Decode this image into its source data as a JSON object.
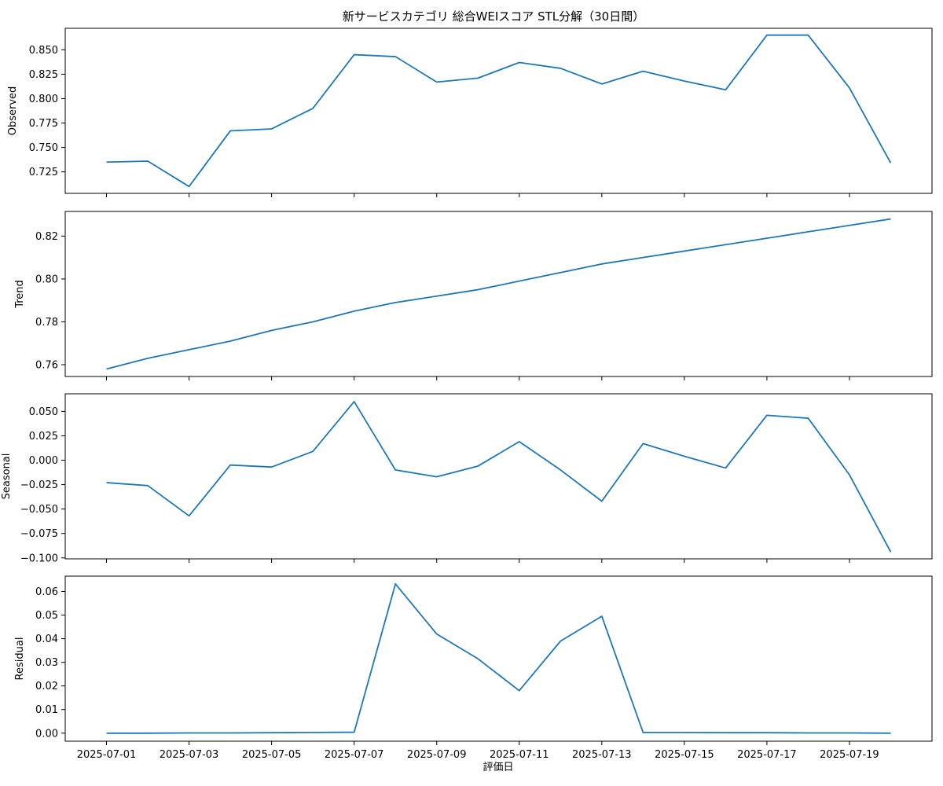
{
  "title": "新サービスカテゴリ 総合WEIスコア STL分解（30日間）",
  "xlabel": "評価日",
  "colors": {
    "line": "#1f77b4",
    "axes": "#000000",
    "background": "#ffffff"
  },
  "chart_data": [
    {
      "type": "line",
      "ylabel": "Observed",
      "xlim": [
        "2025-06-30",
        "2025-07-21"
      ],
      "ylim": [
        0.703,
        0.872
      ],
      "yticks": [
        "0.725",
        "0.750",
        "0.775",
        "0.800",
        "0.825",
        "0.850"
      ],
      "x": [
        "2025-07-01",
        "2025-07-02",
        "2025-07-03",
        "2025-07-04",
        "2025-07-05",
        "2025-07-06",
        "2025-07-07",
        "2025-07-08",
        "2025-07-09",
        "2025-07-10",
        "2025-07-11",
        "2025-07-12",
        "2025-07-13",
        "2025-07-14",
        "2025-07-15",
        "2025-07-16",
        "2025-07-17",
        "2025-07-18",
        "2025-07-19",
        "2025-07-20"
      ],
      "values": [
        0.735,
        0.736,
        0.71,
        0.767,
        0.769,
        0.79,
        0.845,
        0.843,
        0.817,
        0.821,
        0.837,
        0.831,
        0.815,
        0.828,
        0.818,
        0.809,
        0.865,
        0.865,
        0.811,
        0.734
      ]
    },
    {
      "type": "line",
      "ylabel": "Trend",
      "xlim": [
        "2025-06-30",
        "2025-07-21"
      ],
      "ylim": [
        0.7545,
        0.8315
      ],
      "yticks": [
        "0.76",
        "0.78",
        "0.80",
        "0.82"
      ],
      "x": [
        "2025-07-01",
        "2025-07-02",
        "2025-07-03",
        "2025-07-04",
        "2025-07-05",
        "2025-07-06",
        "2025-07-07",
        "2025-07-08",
        "2025-07-09",
        "2025-07-10",
        "2025-07-11",
        "2025-07-12",
        "2025-07-13",
        "2025-07-14",
        "2025-07-15",
        "2025-07-16",
        "2025-07-17",
        "2025-07-18",
        "2025-07-19",
        "2025-07-20"
      ],
      "values": [
        0.758,
        0.763,
        0.767,
        0.771,
        0.776,
        0.78,
        0.785,
        0.789,
        0.792,
        0.795,
        0.799,
        0.803,
        0.807,
        0.81,
        0.813,
        0.816,
        0.819,
        0.822,
        0.825,
        0.828
      ]
    },
    {
      "type": "line",
      "ylabel": "Seasonal",
      "xlim": [
        "2025-06-30",
        "2025-07-21"
      ],
      "ylim": [
        -0.101,
        0.068
      ],
      "yticks": [
        "−0.100",
        "−0.075",
        "−0.050",
        "−0.025",
        "0.000",
        "0.025",
        "0.050"
      ],
      "x": [
        "2025-07-01",
        "2025-07-02",
        "2025-07-03",
        "2025-07-04",
        "2025-07-05",
        "2025-07-06",
        "2025-07-07",
        "2025-07-08",
        "2025-07-09",
        "2025-07-10",
        "2025-07-11",
        "2025-07-12",
        "2025-07-13",
        "2025-07-14",
        "2025-07-15",
        "2025-07-16",
        "2025-07-17",
        "2025-07-18",
        "2025-07-19",
        "2025-07-20"
      ],
      "values": [
        -0.023,
        -0.026,
        -0.057,
        -0.005,
        -0.007,
        0.009,
        0.06,
        -0.01,
        -0.017,
        -0.006,
        0.019,
        -0.01,
        -0.042,
        0.017,
        0.004,
        -0.008,
        0.046,
        0.043,
        -0.015,
        -0.094
      ]
    },
    {
      "type": "line",
      "ylabel": "Residual",
      "xlim": [
        "2025-06-30",
        "2025-07-21"
      ],
      "ylim": [
        -0.0034,
        0.0665
      ],
      "yticks": [
        "0.00",
        "0.01",
        "0.02",
        "0.03",
        "0.04",
        "0.05",
        "0.06"
      ],
      "xticks": [
        "2025-07-01",
        "2025-07-03",
        "2025-07-05",
        "2025-07-07",
        "2025-07-09",
        "2025-07-11",
        "2025-07-13",
        "2025-07-15",
        "2025-07-17",
        "2025-07-19"
      ],
      "x": [
        "2025-07-01",
        "2025-07-02",
        "2025-07-03",
        "2025-07-04",
        "2025-07-05",
        "2025-07-06",
        "2025-07-07",
        "2025-07-08",
        "2025-07-09",
        "2025-07-10",
        "2025-07-11",
        "2025-07-12",
        "2025-07-13",
        "2025-07-14",
        "2025-07-15",
        "2025-07-16",
        "2025-07-17",
        "2025-07-18",
        "2025-07-19",
        "2025-07-20"
      ],
      "values": [
        0.0,
        0.0,
        0.0001,
        0.0001,
        0.0002,
        0.0003,
        0.0004,
        0.0632,
        0.042,
        0.0315,
        0.018,
        0.039,
        0.0495,
        0.0003,
        0.0003,
        0.0002,
        0.0002,
        0.0001,
        0.0001,
        0.0
      ]
    }
  ]
}
